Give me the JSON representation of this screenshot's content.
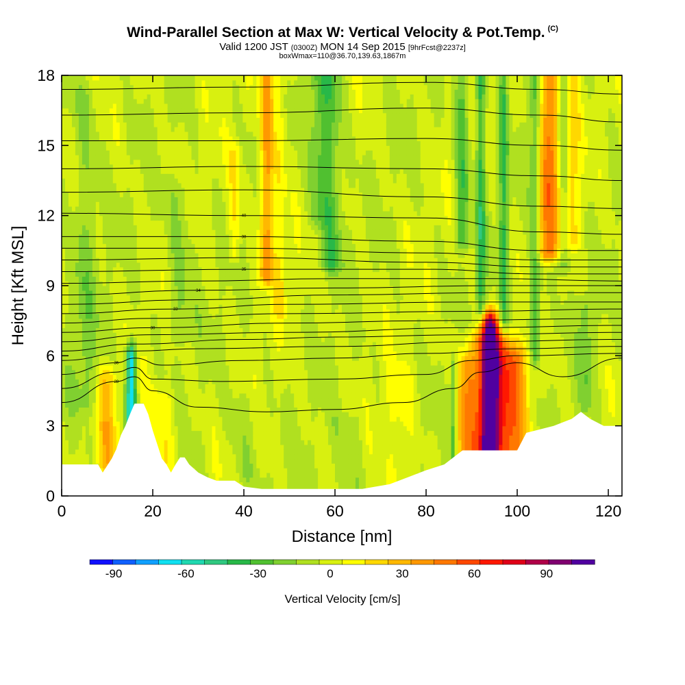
{
  "header": {
    "title": "Wind-Parallel Section at Max W: Vertical Velocity & Pot.Temp.",
    "copyright": "(C)",
    "valid_prefix": "Valid 1200 JST ",
    "valid_zulu": "(0300Z)",
    "valid_date": " MON 14 Sep 2015 ",
    "valid_fcst": "[9hrFcst@2237z]",
    "box_info": "boxWmax=110@36.70,139.63,1867m"
  },
  "chart_data": {
    "type": "heatmap",
    "title": "Wind-Parallel Section at Max W: Vertical Velocity & Pot.Temp.",
    "xlabel": "Distance [nm]",
    "ylabel": "Height [Kft MSL]",
    "xlim": [
      0,
      123
    ],
    "ylim": [
      0,
      18
    ],
    "x_ticks": [
      0,
      20,
      40,
      60,
      80,
      100,
      120
    ],
    "y_ticks": [
      0,
      3,
      6,
      9,
      12,
      15,
      18
    ],
    "colorbar": {
      "label": "Vertical Velocity [cm/s]",
      "ticks": [
        -90,
        -60,
        -30,
        0,
        30,
        60,
        90
      ],
      "levels": [
        -100,
        -90,
        -80,
        -70,
        -60,
        -50,
        -40,
        -30,
        -20,
        -10,
        0,
        10,
        20,
        30,
        40,
        50,
        60,
        70,
        80,
        90,
        100,
        110
      ],
      "colors": [
        "#1010ff",
        "#1060ff",
        "#10a0ff",
        "#10e0f0",
        "#20d8b0",
        "#30c880",
        "#28b848",
        "#50c030",
        "#80d030",
        "#b0e020",
        "#d8f010",
        "#ffff00",
        "#ffd800",
        "#ffb800",
        "#ff9800",
        "#ff7800",
        "#ff4800",
        "#ff1800",
        "#e00018",
        "#b00048",
        "#800070",
        "#5000a0"
      ]
    },
    "theta_levels": [
      22,
      24,
      26,
      28,
      30,
      32,
      34,
      36,
      38,
      40,
      42,
      44,
      46,
      48,
      50,
      52,
      54,
      56,
      58,
      60,
      62,
      64
    ],
    "terrain": [
      [
        0,
        1.35
      ],
      [
        8,
        1.35
      ],
      [
        9,
        1.0
      ],
      [
        10,
        1.3
      ],
      [
        11,
        1.6
      ],
      [
        12,
        2.0
      ],
      [
        13,
        2.6
      ],
      [
        14,
        3.0
      ],
      [
        15,
        3.5
      ],
      [
        16,
        3.95
      ],
      [
        18,
        3.95
      ],
      [
        19,
        3.5
      ],
      [
        20,
        2.8
      ],
      [
        21,
        2.2
      ],
      [
        22,
        1.6
      ],
      [
        23,
        1.35
      ],
      [
        24,
        1.0
      ],
      [
        25,
        1.35
      ],
      [
        26,
        1.65
      ],
      [
        27,
        1.65
      ],
      [
        28,
        1.35
      ],
      [
        30,
        1.0
      ],
      [
        32,
        0.8
      ],
      [
        34,
        0.65
      ],
      [
        36,
        0.65
      ],
      [
        38,
        0.65
      ],
      [
        40,
        0.4
      ],
      [
        44,
        0.3
      ],
      [
        50,
        0.3
      ],
      [
        60,
        0.3
      ],
      [
        66,
        0.3
      ],
      [
        72,
        0.5
      ],
      [
        76,
        0.8
      ],
      [
        80,
        1.1
      ],
      [
        84,
        1.35
      ],
      [
        86,
        1.65
      ],
      [
        88,
        1.95
      ],
      [
        92,
        1.95
      ],
      [
        96,
        1.95
      ],
      [
        100,
        1.95
      ],
      [
        102,
        2.7
      ],
      [
        108,
        3.0
      ],
      [
        112,
        3.3
      ],
      [
        114,
        3.6
      ],
      [
        116,
        3.3
      ],
      [
        119,
        3.0
      ],
      [
        123,
        3.0
      ]
    ],
    "vv_features": [
      {
        "x": 94,
        "z0": 1.9,
        "z1": 7.3,
        "w": 1.8,
        "v": 105
      },
      {
        "x": 94,
        "z0": 1.9,
        "z1": 6.5,
        "w": 5.5,
        "v": 45
      },
      {
        "x": 99,
        "z0": 1.9,
        "z1": 5.8,
        "w": 3.5,
        "v": 38
      },
      {
        "x": 89,
        "z0": 1.5,
        "z1": 5.5,
        "w": 2.0,
        "v": 30
      },
      {
        "x": 107,
        "z0": 10.5,
        "z1": 18,
        "w": 2.5,
        "v": 55
      },
      {
        "x": 112,
        "z0": 11,
        "z1": 18,
        "w": 1.5,
        "v": 25
      },
      {
        "x": 45,
        "z0": 9.5,
        "z1": 18,
        "w": 1.5,
        "v": 45
      },
      {
        "x": 38,
        "z0": 10.5,
        "z1": 14.5,
        "w": 1.2,
        "v": 20
      },
      {
        "x": 48,
        "z0": 8,
        "z1": 18,
        "w": 1.2,
        "v": 18
      },
      {
        "x": 10,
        "z0": 1.5,
        "z1": 5,
        "w": 2.0,
        "v": 30
      },
      {
        "x": 22,
        "z0": 1.5,
        "z1": 4,
        "w": 3.0,
        "v": 18
      },
      {
        "x": 74,
        "z0": 0.5,
        "z1": 5,
        "w": 3.0,
        "v": 12
      },
      {
        "x": 59,
        "z0": 10,
        "z1": 18,
        "w": 2.5,
        "v": -28
      },
      {
        "x": 56,
        "z0": 12,
        "z1": 18,
        "w": 2.0,
        "v": -18
      },
      {
        "x": 88,
        "z0": 11,
        "z1": 18,
        "w": 1.5,
        "v": -30
      },
      {
        "x": 92,
        "z0": 8,
        "z1": 18,
        "w": 1.0,
        "v": -34
      },
      {
        "x": 97,
        "z0": 7.5,
        "z1": 18,
        "w": 1.0,
        "v": -30
      },
      {
        "x": 104,
        "z0": 6,
        "z1": 18,
        "w": 1.2,
        "v": -32
      },
      {
        "x": 110,
        "z0": 10,
        "z1": 18,
        "w": 1.5,
        "v": -25
      },
      {
        "x": 86,
        "z0": 1.5,
        "z1": 5.5,
        "w": 0.7,
        "v": -30
      },
      {
        "x": 115,
        "z0": 4,
        "z1": 8,
        "w": 1.5,
        "v": -18
      },
      {
        "x": 5,
        "z0": 4,
        "z1": 17,
        "w": 3.0,
        "v": -14
      },
      {
        "x": 26,
        "z0": 7,
        "z1": 13,
        "w": 3.0,
        "v": -14
      },
      {
        "x": 40,
        "z0": 1,
        "z1": 4,
        "w": 3.0,
        "v": -10
      },
      {
        "x": 63,
        "z0": 0.3,
        "z1": 3,
        "w": 4.0,
        "v": -10
      },
      {
        "x": 15.2,
        "z0": 2.7,
        "z1": 5.9,
        "w": 1.1,
        "v": -72
      }
    ],
    "theta_contours": [
      {
        "label": "28",
        "pts": [
          [
            0,
            4.0
          ],
          [
            12,
            4.9
          ],
          [
            16,
            5.1
          ],
          [
            20,
            4.5
          ],
          [
            30,
            3.8
          ],
          [
            45,
            3.6
          ],
          [
            60,
            3.7
          ],
          [
            75,
            4.0
          ],
          [
            86,
            4.6
          ],
          [
            92,
            5.3
          ],
          [
            100,
            5.7
          ],
          [
            110,
            5.1
          ],
          [
            123,
            5.9
          ]
        ]
      },
      {
        "label": "",
        "pts": [
          [
            0,
            4.6
          ],
          [
            12,
            5.3
          ],
          [
            16,
            5.5
          ],
          [
            20,
            5.0
          ],
          [
            35,
            4.9
          ],
          [
            60,
            5.0
          ],
          [
            80,
            5.2
          ],
          [
            90,
            5.8
          ],
          [
            100,
            6.0
          ],
          [
            123,
            6.1
          ]
        ]
      },
      {
        "label": "36",
        "pts": [
          [
            0,
            5.2
          ],
          [
            12,
            5.7
          ],
          [
            16,
            5.9
          ],
          [
            22,
            5.6
          ],
          [
            40,
            5.8
          ],
          [
            60,
            5.9
          ],
          [
            80,
            6.1
          ],
          [
            100,
            6.3
          ],
          [
            123,
            6.4
          ]
        ]
      },
      {
        "label": "",
        "pts": [
          [
            0,
            5.8
          ],
          [
            16,
            6.2
          ],
          [
            30,
            6.3
          ],
          [
            60,
            6.4
          ],
          [
            90,
            6.6
          ],
          [
            123,
            6.7
          ]
        ]
      },
      {
        "label": "",
        "pts": [
          [
            0,
            6.2
          ],
          [
            16,
            6.5
          ],
          [
            40,
            6.7
          ],
          [
            60,
            6.8
          ],
          [
            90,
            6.9
          ],
          [
            123,
            7.0
          ]
        ]
      },
      {
        "label": "",
        "pts": [
          [
            0,
            6.6
          ],
          [
            20,
            6.9
          ],
          [
            50,
            7.0
          ],
          [
            90,
            7.2
          ],
          [
            123,
            7.3
          ]
        ]
      },
      {
        "label": "30",
        "pts": [
          [
            0,
            7.0
          ],
          [
            20,
            7.2
          ],
          [
            50,
            7.4
          ],
          [
            80,
            7.5
          ],
          [
            123,
            7.6
          ]
        ]
      },
      {
        "label": "",
        "pts": [
          [
            0,
            7.4
          ],
          [
            20,
            7.6
          ],
          [
            50,
            7.8
          ],
          [
            90,
            7.9
          ],
          [
            123,
            8.0
          ]
        ]
      },
      {
        "label": "33",
        "pts": [
          [
            0,
            7.8
          ],
          [
            25,
            8.0
          ],
          [
            50,
            8.2
          ],
          [
            90,
            8.3
          ],
          [
            123,
            8.3
          ]
        ]
      },
      {
        "label": "",
        "pts": [
          [
            0,
            8.2
          ],
          [
            30,
            8.4
          ],
          [
            60,
            8.6
          ],
          [
            95,
            8.7
          ],
          [
            123,
            8.7
          ]
        ]
      },
      {
        "label": "34",
        "pts": [
          [
            0,
            8.6
          ],
          [
            30,
            8.8
          ],
          [
            60,
            8.9
          ],
          [
            95,
            9.0
          ],
          [
            123,
            9.0
          ]
        ]
      },
      {
        "label": "",
        "pts": [
          [
            0,
            9.1
          ],
          [
            30,
            9.2
          ],
          [
            60,
            9.3
          ],
          [
            95,
            9.3
          ],
          [
            123,
            9.2
          ]
        ]
      },
      {
        "label": "35",
        "pts": [
          [
            0,
            9.6
          ],
          [
            40,
            9.7
          ],
          [
            80,
            9.7
          ],
          [
            105,
            9.5
          ],
          [
            123,
            9.5
          ]
        ]
      },
      {
        "label": "",
        "pts": [
          [
            0,
            10.1
          ],
          [
            40,
            10.2
          ],
          [
            80,
            10.0
          ],
          [
            105,
            9.8
          ],
          [
            123,
            9.8
          ]
        ]
      },
      {
        "label": "",
        "pts": [
          [
            0,
            10.6
          ],
          [
            40,
            10.6
          ],
          [
            80,
            10.4
          ],
          [
            105,
            10.1
          ],
          [
            123,
            10.1
          ]
        ]
      },
      {
        "label": "38",
        "pts": [
          [
            0,
            11.1
          ],
          [
            40,
            11.1
          ],
          [
            80,
            10.9
          ],
          [
            105,
            10.5
          ],
          [
            123,
            10.5
          ]
        ]
      },
      {
        "label": "40",
        "pts": [
          [
            0,
            12.1
          ],
          [
            40,
            12.0
          ],
          [
            80,
            11.9
          ],
          [
            105,
            11.3
          ],
          [
            123,
            11.2
          ]
        ]
      },
      {
        "label": "",
        "pts": [
          [
            0,
            13.0
          ],
          [
            40,
            13.1
          ],
          [
            80,
            12.8
          ],
          [
            105,
            12.4
          ],
          [
            123,
            12.3
          ]
        ]
      },
      {
        "label": "",
        "pts": [
          [
            0,
            14.0
          ],
          [
            40,
            14.1
          ],
          [
            80,
            14.0
          ],
          [
            105,
            13.7
          ],
          [
            123,
            13.5
          ]
        ]
      },
      {
        "label": "",
        "pts": [
          [
            0,
            15.2
          ],
          [
            40,
            15.2
          ],
          [
            80,
            15.3
          ],
          [
            105,
            15.0
          ],
          [
            123,
            14.8
          ]
        ]
      },
      {
        "label": "",
        "pts": [
          [
            0,
            16.3
          ],
          [
            40,
            16.4
          ],
          [
            80,
            16.6
          ],
          [
            105,
            16.3
          ],
          [
            123,
            16.0
          ]
        ]
      },
      {
        "label": "",
        "pts": [
          [
            0,
            17.4
          ],
          [
            40,
            17.5
          ],
          [
            80,
            17.7
          ],
          [
            105,
            17.4
          ],
          [
            123,
            17.2
          ]
        ]
      }
    ]
  }
}
